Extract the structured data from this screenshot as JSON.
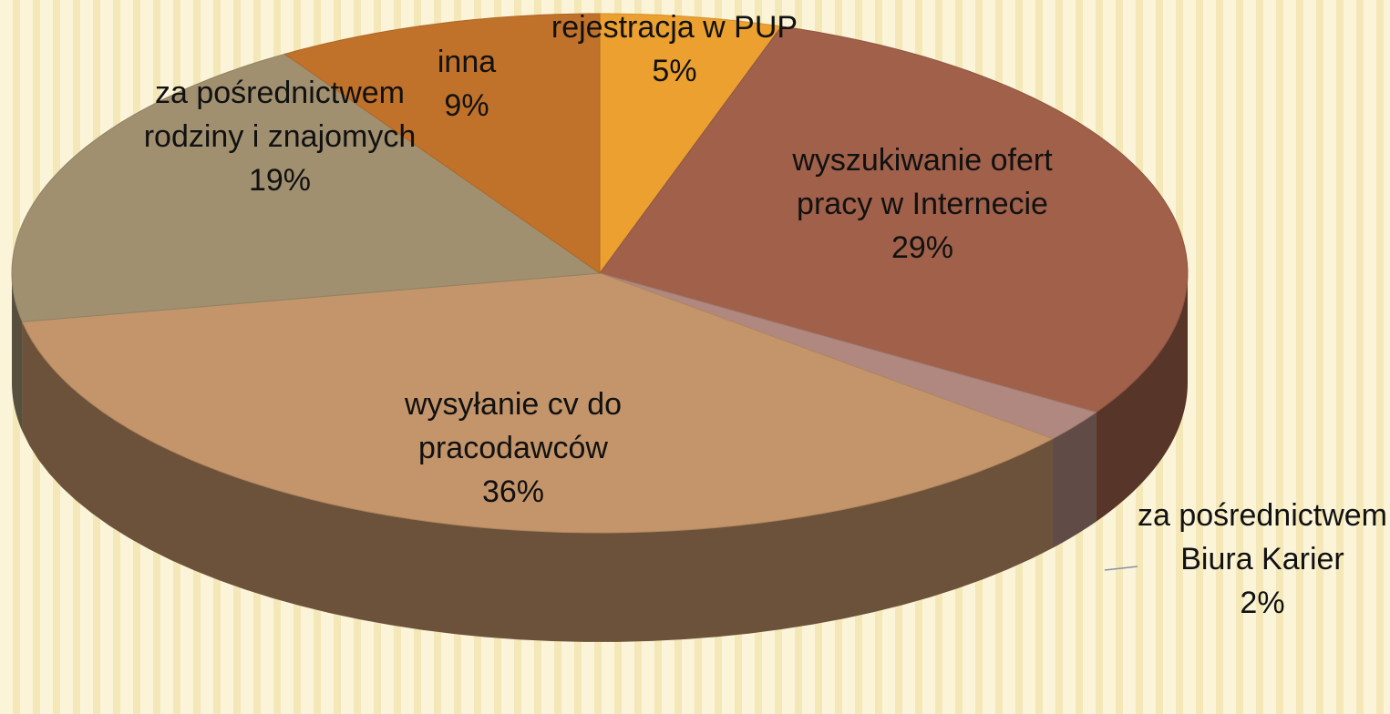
{
  "chart_data": {
    "type": "pie",
    "categories": [
      "rejestracja w PUP",
      "wyszukiwanie ofert pracy w Internecie",
      "za pośrednictwem Biura Karier",
      "wysyłanie cv do pracodawców",
      "za pośrednictwem rodziny i znajomych",
      "inna"
    ],
    "values": [
      5,
      29,
      2,
      36,
      19,
      9
    ],
    "value_labels": [
      "5%",
      "29%",
      "2%",
      "36%",
      "19%",
      "9%"
    ],
    "colors": [
      "#eba030",
      "#a0604a",
      "#b08880",
      "#c4956a",
      "#a09070",
      "#c0722a"
    ]
  }
}
